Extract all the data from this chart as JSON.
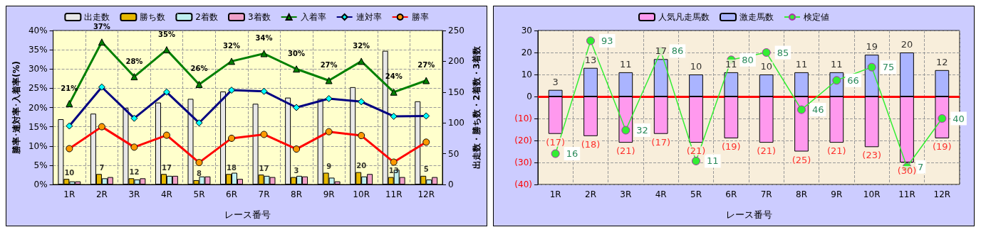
{
  "chart_data": [
    {
      "type": "bar",
      "xlabel": "レース番号",
      "ylabel": "勝率･連対率･入着率(%)",
      "y2label": "出走数・勝ち数・2着数・3着数",
      "categories": [
        "1R",
        "2R",
        "3R",
        "4R",
        "5R",
        "6R",
        "7R",
        "8R",
        "9R",
        "10R",
        "11R",
        "12R"
      ],
      "ylim": [
        0,
        40
      ],
      "yticks": [
        {
          "value": 0,
          "label": "0%"
        },
        {
          "value": 5,
          "label": "5%"
        },
        {
          "value": 10,
          "label": "10%"
        },
        {
          "value": 15,
          "label": "15%"
        },
        {
          "value": 20,
          "label": "20%"
        },
        {
          "value": 25,
          "label": "25%"
        },
        {
          "value": 30,
          "label": "30%"
        },
        {
          "value": 35,
          "label": "35%"
        },
        {
          "value": 40,
          "label": "40%"
        }
      ],
      "y2lim": [
        0,
        250
      ],
      "y2ticks": [
        0,
        50,
        100,
        150,
        200,
        250
      ],
      "grid": true,
      "legend": "top",
      "series": [
        {
          "name": "出走数",
          "axis": "y2",
          "color": "#e8e8e8",
          "values": [
            106,
            115,
            124,
            133,
            139,
            151,
            131,
            141,
            139,
            158,
            217,
            135
          ]
        },
        {
          "name": "勝ち数",
          "axis": "y2",
          "color": "#e6b800",
          "values": [
            9,
            17,
            10,
            17,
            7,
            17,
            16,
            12,
            19,
            20,
            12,
            14
          ]
        },
        {
          "name": "2着数",
          "axis": "y2",
          "color": "#bff0f0",
          "values": [
            5,
            10,
            8,
            14,
            13,
            19,
            14,
            14,
            11,
            13,
            24,
            8
          ]
        },
        {
          "name": "3着数",
          "axis": "y2",
          "color": "#f0a0c8",
          "values": [
            5,
            12,
            10,
            14,
            13,
            9,
            12,
            13,
            5,
            17,
            12,
            12
          ]
        },
        {
          "name": "入着率",
          "type": "line",
          "color": "#008000",
          "marker": "triangle",
          "values": [
            21,
            37,
            28,
            35,
            26,
            32,
            34,
            30,
            27,
            32,
            24,
            27
          ],
          "value_labels": [
            "21%",
            "37%",
            "28%",
            "35%",
            "26%",
            "32%",
            "34%",
            "30%",
            "27%",
            "32%",
            "24%",
            "27%"
          ]
        },
        {
          "name": "連対率",
          "type": "line",
          "color": "#000080",
          "marker": "diamond",
          "values": [
            15.2,
            25.3,
            17.2,
            24,
            16,
            24.5,
            24.2,
            20,
            22.3,
            21.5,
            17.7,
            17.8
          ]
        },
        {
          "name": "勝率",
          "type": "line",
          "color": "#ff0000",
          "marker": "circle",
          "values": [
            9.3,
            15,
            9.7,
            12.8,
            5.7,
            12,
            13,
            9.2,
            13.7,
            12.7,
            5.8,
            11
          ]
        }
      ],
      "annotations": [
        "10",
        "7",
        "12",
        "17",
        "8",
        "18",
        "17",
        "3",
        "9",
        "20",
        "13",
        "5"
      ]
    },
    {
      "type": "bar",
      "xlabel": "レース番号",
      "stacked": true,
      "categories": [
        "1R",
        "2R",
        "3R",
        "4R",
        "5R",
        "6R",
        "7R",
        "8R",
        "9R",
        "10R",
        "11R",
        "12R"
      ],
      "ylim": [
        -40,
        30
      ],
      "yticks": [
        {
          "value": -40,
          "label": "(40)"
        },
        {
          "value": -30,
          "label": "(30)"
        },
        {
          "value": -20,
          "label": "(20)"
        },
        {
          "value": -10,
          "label": "(10)"
        },
        0,
        10,
        20,
        30
      ],
      "y2lim": [
        -5,
        100
      ],
      "grid": true,
      "legend": "top",
      "ref_lines": [
        {
          "axis": "y",
          "value": 0,
          "color": "#ff0000"
        }
      ],
      "series": [
        {
          "name": "人気凡走馬数",
          "color": "#ff99ee",
          "values": [
            -17,
            -18,
            -21,
            -17,
            -21,
            -19,
            -21,
            -25,
            -21,
            -23,
            -30,
            -19
          ],
          "value_labels": [
            "(17)",
            "(18)",
            "(21)",
            "(17)",
            "(21)",
            "(19)",
            "(21)",
            "(25)",
            "(21)",
            "(23)",
            "(30)",
            "(19)"
          ]
        },
        {
          "name": "激走馬数",
          "color": "#aab4ff",
          "values": [
            3,
            13,
            11,
            17,
            10,
            11,
            10,
            11,
            11,
            19,
            20,
            12
          ],
          "value_labels": [
            "3",
            "13",
            "11",
            "17",
            "10",
            "11",
            "10",
            "11",
            "11",
            "19",
            "20",
            "12"
          ]
        },
        {
          "name": "検定値",
          "type": "line",
          "axis": "y2",
          "color": "#33ee33",
          "marker": "circle",
          "data_labels": true,
          "values": [
            16,
            93,
            32,
            86,
            11,
            80,
            85,
            46,
            66,
            75,
            7,
            40
          ]
        }
      ]
    }
  ]
}
